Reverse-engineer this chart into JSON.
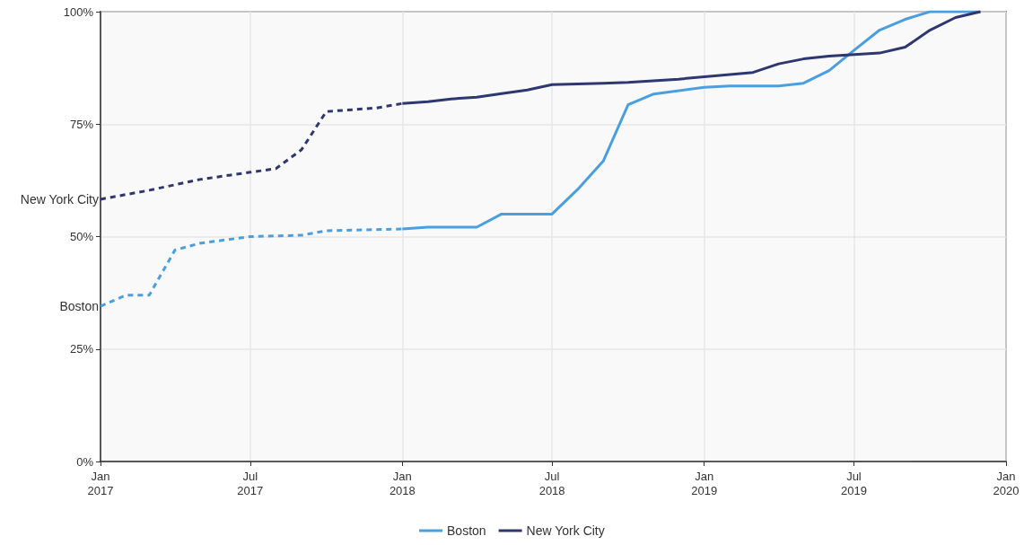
{
  "chart_data": {
    "type": "line",
    "marker": "none",
    "grid": true,
    "legend": "bottom",
    "xlim": [
      "2017-01",
      "2020-01"
    ],
    "xticks": [
      {
        "value": "2017-01",
        "label": "Jan\n2017"
      },
      {
        "value": "2017-07",
        "label": "Jul\n2017"
      },
      {
        "value": "2018-01",
        "label": "Jan\n2018"
      },
      {
        "value": "2018-07",
        "label": "Jul\n2018"
      },
      {
        "value": "2019-01",
        "label": "Jan\n2019"
      },
      {
        "value": "2019-07",
        "label": "Jul\n2019"
      },
      {
        "value": "2020-01",
        "label": "Jan\n2020"
      }
    ],
    "ylim": [
      0,
      100
    ],
    "yticks": [
      {
        "value": 0,
        "label": "0%"
      },
      {
        "value": 25,
        "label": "25%"
      },
      {
        "value": 50,
        "label": "50%"
      },
      {
        "value": 75,
        "label": "75%"
      },
      {
        "value": 100,
        "label": "100%"
      }
    ],
    "annotations": [
      {
        "text": "New York City",
        "x": "2017-01",
        "y": 58.3
      },
      {
        "text": "Boston",
        "x": "2017-01",
        "y": 34.5
      }
    ],
    "series": [
      {
        "color": "#4a9fe0",
        "line_style": "dashed",
        "x": [
          "2017-01",
          "2017-02",
          "2017-03",
          "2017-04",
          "2017-05",
          "2017-07",
          "2017-09",
          "2017-10",
          "2018-01"
        ],
        "values": [
          34.5,
          37,
          37,
          47,
          48.5,
          50,
          50.3,
          51.3,
          51.7
        ]
      },
      {
        "name": "Boston",
        "color": "#4a9fe0",
        "line_style": "solid",
        "x": [
          "2018-01",
          "2018-02",
          "2018-04",
          "2018-05",
          "2018-07",
          "2018-08",
          "2018-09",
          "2018-10",
          "2018-11",
          "2019-01",
          "2019-02",
          "2019-04",
          "2019-05",
          "2019-06",
          "2019-07",
          "2019-08",
          "2019-09",
          "2019-10",
          "2019-12"
        ],
        "values": [
          51.7,
          52.1,
          52.1,
          55,
          55,
          60.5,
          66.8,
          79.3,
          81.7,
          83.2,
          83.5,
          83.5,
          84.1,
          86.9,
          91.4,
          95.9,
          98.3,
          100,
          100
        ]
      },
      {
        "color": "#2e3770",
        "line_style": "dashed",
        "x": [
          "2017-01",
          "2017-03",
          "2017-05",
          "2017-07",
          "2017-08",
          "2017-09",
          "2017-10",
          "2017-12",
          "2018-01"
        ],
        "values": [
          58.3,
          60.3,
          62.7,
          64.3,
          65.1,
          69.3,
          77.8,
          78.6,
          79.6
        ]
      },
      {
        "name": "New York City",
        "color": "#2e3770",
        "line_style": "solid",
        "x": [
          "2018-01",
          "2018-02",
          "2018-03",
          "2018-04",
          "2018-05",
          "2018-06",
          "2018-07",
          "2018-09",
          "2018-10",
          "2018-12",
          "2019-03",
          "2019-04",
          "2019-05",
          "2019-06",
          "2019-08",
          "2019-09",
          "2019-10",
          "2019-11",
          "2019-12"
        ],
        "values": [
          79.6,
          80,
          80.6,
          81,
          81.8,
          82.6,
          83.8,
          84.1,
          84.3,
          85,
          86.5,
          88.4,
          89.5,
          90.1,
          90.8,
          92.1,
          95.9,
          98.7,
          100
        ]
      }
    ]
  }
}
